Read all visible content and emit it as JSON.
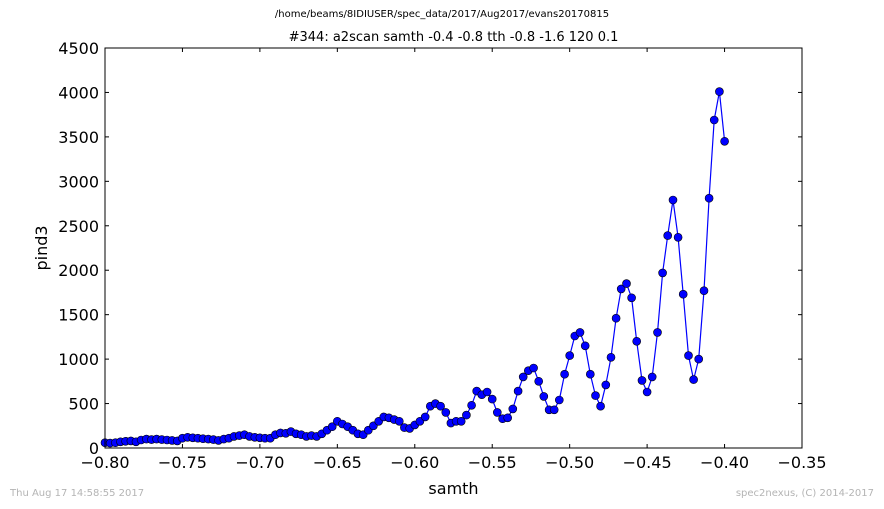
{
  "subtitle": "/home/beams/8IDIUSER/spec_data/2017/Aug2017/evans20170815",
  "footer": {
    "timestamp": "Thu Aug 17 14:58:55 2017",
    "credit": "spec2nexus, (C) 2014-2017"
  },
  "colors": {
    "series": "#0000ff",
    "axes": "#000000",
    "footer_text": "#b4b4b4"
  },
  "chart_data": {
    "type": "line",
    "title": "#344: a2scan  samth -0.4 -0.8  tth -0.8 -1.6  120 0.1",
    "xlabel": "samth",
    "ylabel": "pind3",
    "xlim": [
      -0.8,
      -0.35
    ],
    "ylim": [
      0,
      4500
    ],
    "xticks": [
      -0.8,
      -0.75,
      -0.7,
      -0.65,
      -0.6,
      -0.55,
      -0.5,
      -0.45,
      -0.4,
      -0.35
    ],
    "xtick_labels": [
      "−0.80",
      "−0.75",
      "−0.70",
      "−0.65",
      "−0.60",
      "−0.55",
      "−0.50",
      "−0.45",
      "−0.40",
      "−0.35"
    ],
    "yticks": [
      0,
      500,
      1000,
      1500,
      2000,
      2500,
      3000,
      3500,
      4000,
      4500
    ],
    "ytick_labels": [
      "0",
      "500",
      "1000",
      "1500",
      "2000",
      "2500",
      "3000",
      "3500",
      "4000",
      "4500"
    ],
    "grid": false,
    "marker": "circle",
    "series": [
      {
        "x": [
          -0.8,
          -0.7967,
          -0.7933,
          -0.79,
          -0.7867,
          -0.7833,
          -0.78,
          -0.7767,
          -0.7733,
          -0.77,
          -0.7667,
          -0.7633,
          -0.76,
          -0.7567,
          -0.7533,
          -0.75,
          -0.7467,
          -0.7433,
          -0.74,
          -0.7367,
          -0.7333,
          -0.73,
          -0.7267,
          -0.7233,
          -0.72,
          -0.7167,
          -0.7133,
          -0.71,
          -0.7067,
          -0.7033,
          -0.7,
          -0.6967,
          -0.6933,
          -0.69,
          -0.6867,
          -0.6833,
          -0.68,
          -0.6767,
          -0.6733,
          -0.67,
          -0.6667,
          -0.6633,
          -0.66,
          -0.6567,
          -0.6533,
          -0.65,
          -0.6467,
          -0.6433,
          -0.64,
          -0.6367,
          -0.6333,
          -0.63,
          -0.6267,
          -0.6233,
          -0.62,
          -0.6167,
          -0.6133,
          -0.61,
          -0.6067,
          -0.6033,
          -0.6,
          -0.5967,
          -0.5933,
          -0.59,
          -0.5867,
          -0.5833,
          -0.58,
          -0.5767,
          -0.5733,
          -0.57,
          -0.5667,
          -0.5633,
          -0.56,
          -0.5567,
          -0.5533,
          -0.55,
          -0.5467,
          -0.5433,
          -0.54,
          -0.5367,
          -0.5333,
          -0.53,
          -0.5267,
          -0.5233,
          -0.52,
          -0.5167,
          -0.5133,
          -0.51,
          -0.5067,
          -0.5033,
          -0.5,
          -0.4967,
          -0.4933,
          -0.49,
          -0.4867,
          -0.4833,
          -0.48,
          -0.4767,
          -0.4733,
          -0.47,
          -0.4667,
          -0.4633,
          -0.46,
          -0.4567,
          -0.4533,
          -0.45,
          -0.4467,
          -0.4433,
          -0.44,
          -0.4367,
          -0.4333,
          -0.43,
          -0.4267,
          -0.4233,
          -0.42,
          -0.4167,
          -0.4133,
          -0.41,
          -0.4067,
          -0.4033,
          -0.4
        ],
        "y": [
          60,
          55,
          60,
          70,
          75,
          80,
          70,
          90,
          100,
          95,
          100,
          95,
          90,
          85,
          80,
          110,
          120,
          115,
          110,
          105,
          100,
          95,
          85,
          100,
          110,
          130,
          140,
          150,
          130,
          120,
          115,
          110,
          110,
          150,
          170,
          165,
          185,
          160,
          150,
          130,
          140,
          130,
          160,
          200,
          240,
          300,
          270,
          240,
          200,
          160,
          150,
          200,
          250,
          300,
          350,
          340,
          320,
          300,
          230,
          220,
          260,
          300,
          350,
          470,
          500,
          470,
          400,
          280,
          300,
          300,
          370,
          480,
          640,
          600,
          630,
          550,
          400,
          330,
          340,
          440,
          640,
          800,
          870,
          900,
          750,
          580,
          430,
          430,
          540,
          830,
          1040,
          1260,
          1300,
          1150,
          830,
          590,
          470,
          710,
          1020,
          1460,
          1790,
          1850,
          1690,
          1200,
          760,
          630,
          800,
          1300,
          1970,
          2390,
          2790,
          2370,
          1730,
          1040,
          770,
          1000,
          1770,
          2810,
          3690,
          4010,
          3450
        ]
      }
    ]
  }
}
